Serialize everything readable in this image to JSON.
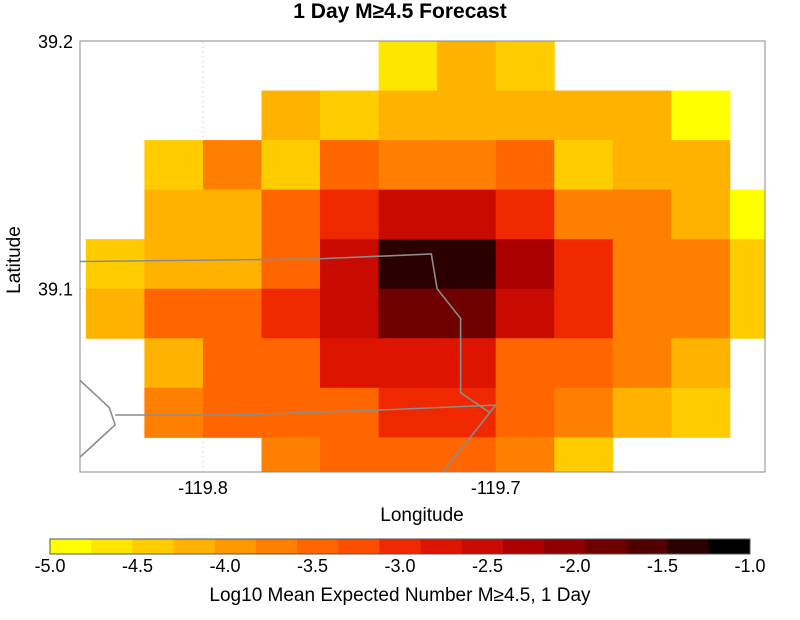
{
  "chart_data": {
    "type": "heatmap",
    "title": "1 Day M≥4.5 Forecast",
    "xlabel": "Longitude",
    "ylabel": "Latitude",
    "xlim": [
      -119.842,
      -119.608
    ],
    "ylim": [
      39.026,
      39.2
    ],
    "grid": true,
    "x_ticks": [
      -119.8,
      -119.7
    ],
    "x_tick_labels": [
      "-119.8",
      "-119.7"
    ],
    "y_ticks": [
      39.1,
      39.2
    ],
    "y_tick_labels": [
      "39.1",
      "39.2"
    ],
    "cell_size_deg": 0.02,
    "col_lon_centers": [
      -119.83,
      -119.81,
      -119.79,
      -119.77,
      -119.75,
      -119.73,
      -119.71,
      -119.69,
      -119.67,
      -119.65,
      -119.63,
      -119.61
    ],
    "row_lat_centers": [
      39.19,
      39.17,
      39.15,
      39.13,
      39.11,
      39.09,
      39.07,
      39.05,
      39.03
    ],
    "values": [
      [
        null,
        null,
        null,
        null,
        null,
        -4.7,
        -4.2,
        -4.3,
        null,
        null,
        null,
        null
      ],
      [
        null,
        null,
        null,
        -4.2,
        -4.3,
        -4.2,
        -4.2,
        -4.2,
        -4.2,
        -4.2,
        -4.8,
        null
      ],
      [
        null,
        -4.5,
        -3.8,
        -4.4,
        -3.4,
        -3.8,
        -3.8,
        -3.4,
        -4.3,
        -4.1,
        -4.2,
        null
      ],
      [
        null,
        -4.1,
        -4.1,
        -3.4,
        -3.0,
        -2.6,
        -2.6,
        -3.0,
        -3.6,
        -3.8,
        -4.1,
        -4.8
      ],
      [
        -4.4,
        -4.1,
        -4.1,
        -3.4,
        -2.6,
        -1.4,
        -1.4,
        -2.2,
        -3.0,
        -3.6,
        -3.8,
        -4.4
      ],
      [
        -4.1,
        -3.4,
        -3.4,
        -3.0,
        -2.6,
        -1.8,
        -1.8,
        -2.6,
        -3.0,
        -3.6,
        -3.8,
        -4.4
      ],
      [
        null,
        -4.1,
        -3.4,
        -3.4,
        -2.8,
        -2.8,
        -2.8,
        -3.4,
        -3.4,
        -3.8,
        -4.1,
        null
      ],
      [
        null,
        -3.8,
        -3.4,
        -3.4,
        -3.4,
        -3.0,
        -3.0,
        -3.4,
        -3.8,
        -4.1,
        -4.3,
        null
      ],
      [
        null,
        null,
        null,
        -3.8,
        -3.4,
        -3.4,
        -3.4,
        -3.8,
        -4.4,
        null,
        null,
        null
      ]
    ],
    "colorbar": {
      "label": "Log10 Mean Expected Number M≥4.5, 1 Day",
      "min": -5.0,
      "max": -1.0,
      "ticks": [
        -5.0,
        -4.5,
        -4.0,
        -3.5,
        -3.0,
        -2.5,
        -2.0,
        -1.5,
        -1.0
      ],
      "tick_labels": [
        "-5.0",
        "-4.5",
        "-4.0",
        "-3.5",
        "-3.0",
        "-2.5",
        "-2.0",
        "-1.5",
        "-1.0"
      ],
      "colors": [
        "#ffff00",
        "#ffe600",
        "#ffcc00",
        "#ffb300",
        "#ff9900",
        "#ff8000",
        "#ff6600",
        "#ff4d00",
        "#f02800",
        "#dc1400",
        "#c80a00",
        "#aa0000",
        "#8c0000",
        "#6e0000",
        "#500000",
        "#2a0000",
        "#000000"
      ]
    },
    "overlay_lines": [
      {
        "name": "border-1",
        "points": [
          [
            -119.842,
            39.111
          ],
          [
            -119.762,
            39.112
          ],
          [
            -119.722,
            39.114
          ],
          [
            -119.72,
            39.1
          ],
          [
            -119.712,
            39.088
          ],
          [
            -119.712,
            39.058
          ],
          [
            -119.702,
            39.05
          ]
        ]
      },
      {
        "name": "border-2",
        "points": [
          [
            -119.842,
            39.063
          ],
          [
            -119.832,
            39.052
          ],
          [
            -119.83,
            39.045
          ],
          [
            -119.842,
            39.032
          ]
        ]
      },
      {
        "name": "border-3",
        "points": [
          [
            -119.83,
            39.049
          ],
          [
            -119.79,
            39.049
          ],
          [
            -119.74,
            39.051
          ],
          [
            -119.7,
            39.053
          ],
          [
            -119.702,
            39.05
          ],
          [
            -119.71,
            39.038
          ],
          [
            -119.718,
            39.026
          ]
        ]
      }
    ]
  }
}
